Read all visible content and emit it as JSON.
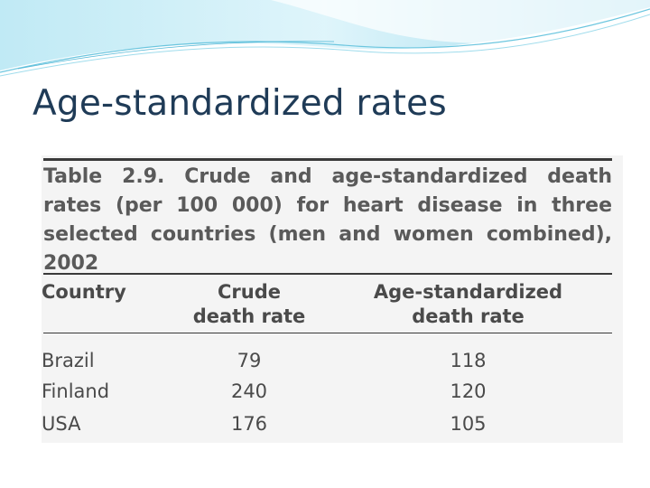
{
  "slide": {
    "title": "Age-standardized rates"
  },
  "table": {
    "caption": "Table 2.9. Crude and age-standardized death rates (per 100 000) for heart disease in three selected countries (men and women combined), 2002",
    "headers": {
      "country": "Country",
      "crude": [
        "Crude",
        "death rate"
      ],
      "age_standardized": [
        "Age-standardized",
        "death rate"
      ]
    },
    "rows": [
      {
        "country": "Brazil",
        "crude": "79",
        "age_standardized": "118"
      },
      {
        "country": "Finland",
        "crude": "240",
        "age_standardized": "120"
      },
      {
        "country": "USA",
        "crude": "176",
        "age_standardized": "105"
      }
    ]
  },
  "colors": {
    "title": "#1f3b57",
    "banner_light": "#cfeef7",
    "banner_mid": "#7fcfe6",
    "table_text": "#4a4a4a"
  }
}
